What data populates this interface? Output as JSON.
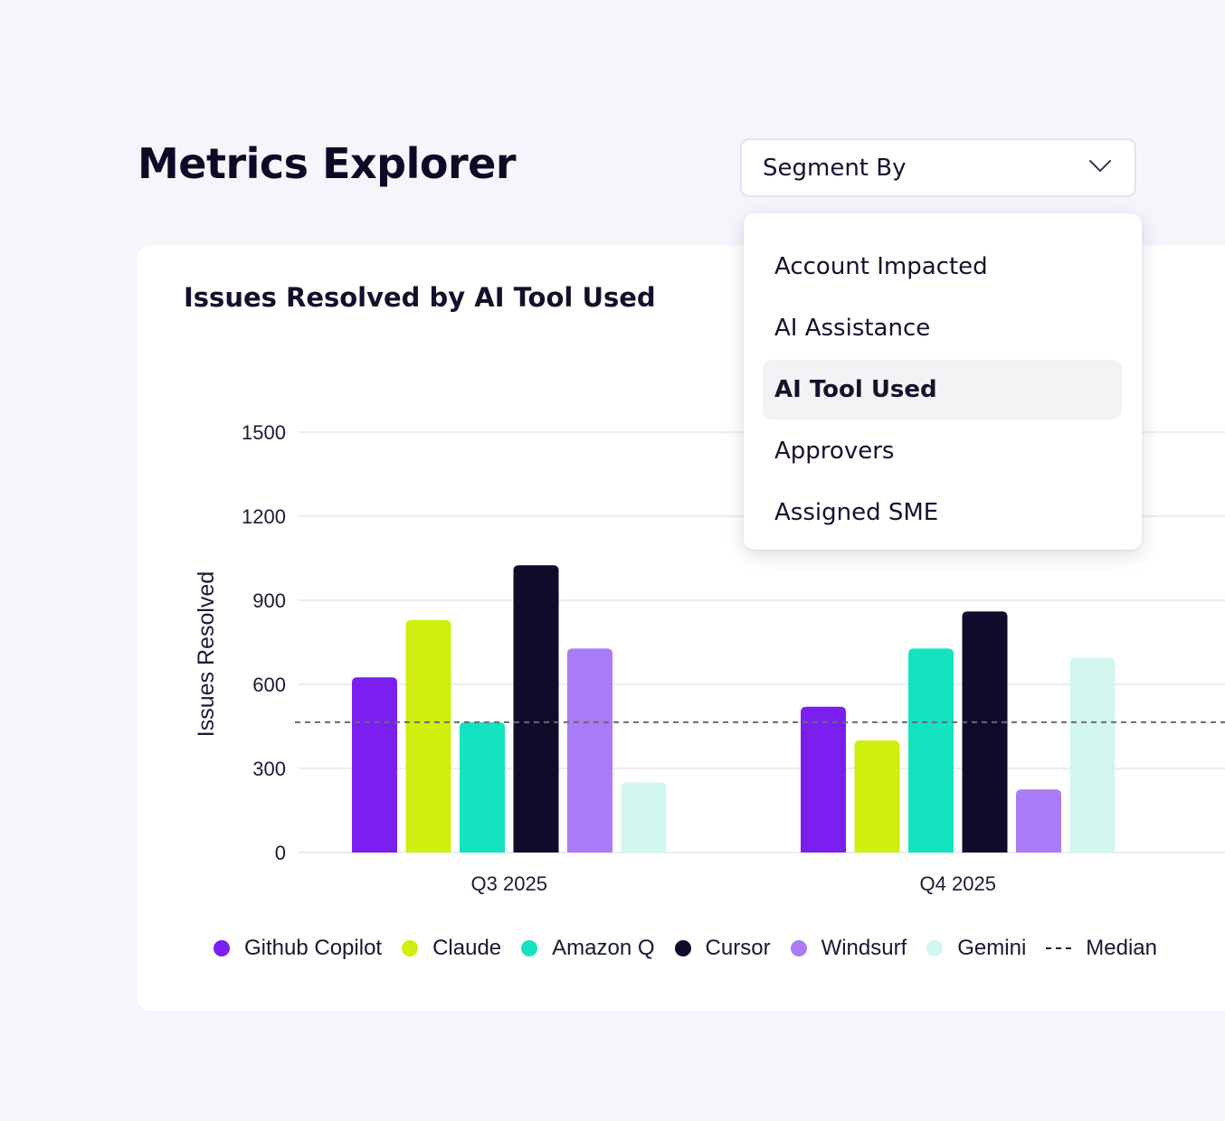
{
  "page": {
    "title": "Metrics Explorer"
  },
  "segment_select": {
    "label": "Segment By",
    "icon": "chevron-down-icon"
  },
  "dropdown": {
    "items": [
      {
        "label": "Account Impacted",
        "selected": false
      },
      {
        "label": "AI Assistance",
        "selected": false
      },
      {
        "label": "AI Tool Used",
        "selected": true
      },
      {
        "label": "Approvers",
        "selected": false
      },
      {
        "label": "Assigned SME",
        "selected": false
      }
    ]
  },
  "chart": {
    "title": "Issues Resolved by AI Tool Used"
  },
  "legend": {
    "items": [
      "Github Copilot",
      "Claude",
      "Amazon Q",
      "Cursor",
      "Windsurf",
      "Gemini"
    ],
    "median_label": "Median"
  },
  "chart_data": {
    "type": "bar",
    "title": "Issues Resolved by AI Tool Used",
    "xlabel": "",
    "ylabel": "Issues Resolved",
    "categories": [
      "Q3 2025",
      "Q4 2025"
    ],
    "yticks": [
      "0",
      "300",
      "600",
      "900",
      "1200",
      "1500"
    ],
    "ylim": [
      0,
      1500
    ],
    "grid": true,
    "legend_position": "bottom",
    "series": [
      {
        "name": "Github Copilot",
        "color": "#7a1ff0",
        "values": [
          625,
          520
        ]
      },
      {
        "name": "Claude",
        "color": "#d0ef0e",
        "values": [
          830,
          400
        ]
      },
      {
        "name": "Amazon Q",
        "color": "#14e3c0",
        "values": [
          465,
          728
        ]
      },
      {
        "name": "Cursor",
        "color": "#0f0b2b",
        "values": [
          1025,
          860
        ]
      },
      {
        "name": "Windsurf",
        "color": "#a97bf6",
        "values": [
          728,
          225
        ]
      },
      {
        "name": "Gemini",
        "color": "#d2f7ee",
        "values": [
          250,
          695
        ]
      }
    ],
    "median": {
      "name": "Median",
      "value": 465,
      "color": "#6b6878"
    }
  }
}
